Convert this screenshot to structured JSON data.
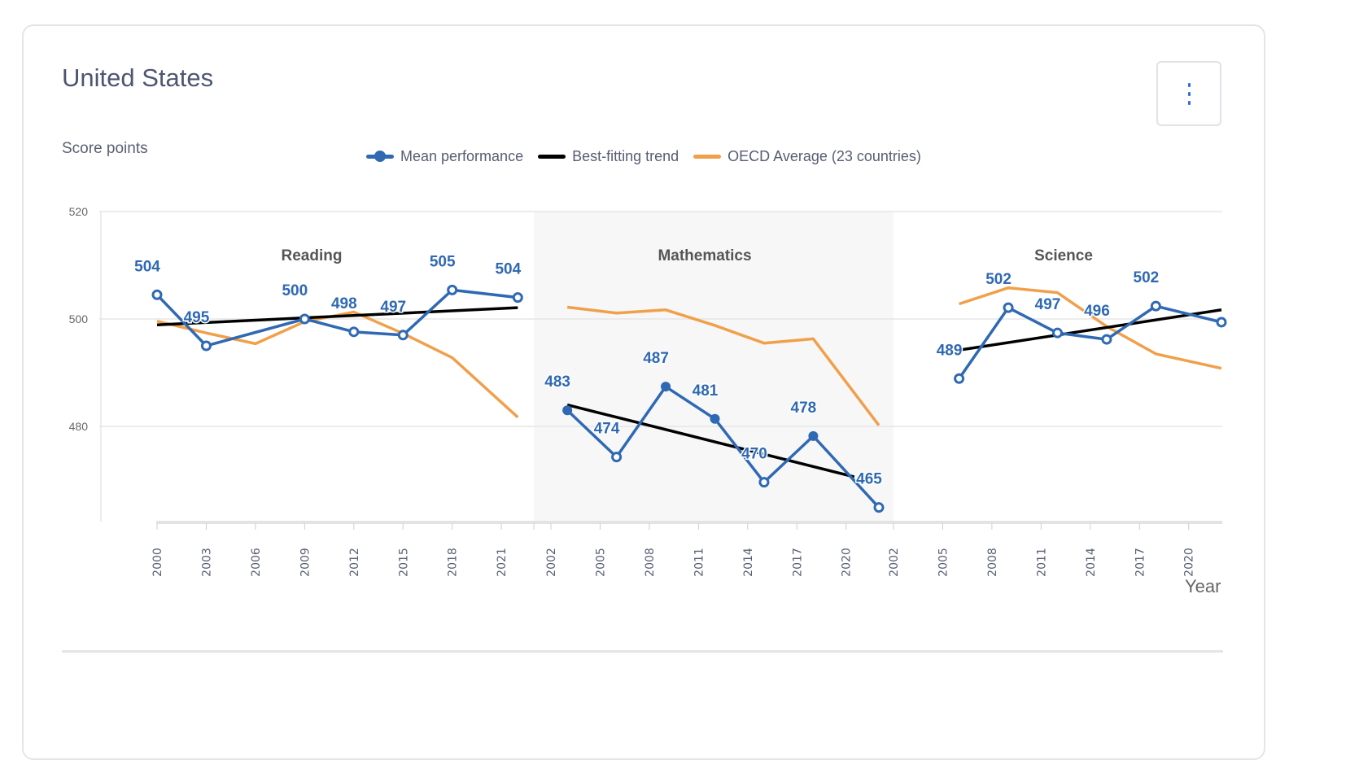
{
  "card": {
    "title": "United States",
    "menu_icon": "vertical-ellipsis-icon"
  },
  "chart_data": {
    "type": "line",
    "ylabel": "Score points",
    "xlabel": "Year",
    "ylim": [
      462,
      520
    ],
    "yticks": [
      480,
      500,
      520
    ],
    "grid": true,
    "legend_placement": "top-center",
    "legend": [
      {
        "name": "Mean performance",
        "color": "#2f69b3"
      },
      {
        "name": "Best-fitting trend",
        "color": "#000000"
      },
      {
        "name": "OECD Average (23 countries)",
        "color": "#f0a04b"
      }
    ],
    "panels": [
      {
        "title": "Reading",
        "tick_labels": [
          "2000",
          "2003",
          "2006",
          "2009",
          "2012",
          "2015",
          "2018",
          "2021"
        ],
        "tick_start": 2000,
        "shaded": false,
        "mean": [
          {
            "year": 2000,
            "value": 504.5,
            "label": "504",
            "marker": "open"
          },
          {
            "year": 2003,
            "value": 495,
            "label": "495",
            "marker": "open"
          },
          {
            "year": 2009,
            "value": 500,
            "label": "500",
            "marker": "open"
          },
          {
            "year": 2012,
            "value": 497.6,
            "label": "498",
            "marker": "open"
          },
          {
            "year": 2015,
            "value": 497,
            "label": "497",
            "marker": "open"
          },
          {
            "year": 2018,
            "value": 505.4,
            "label": "505",
            "marker": "open"
          },
          {
            "year": 2022,
            "value": 504,
            "label": "504",
            "marker": "open"
          }
        ],
        "trend": [
          {
            "year": 2000,
            "value": 498.9
          },
          {
            "year": 2022,
            "value": 502.1
          }
        ],
        "oecd": [
          {
            "year": 2000,
            "value": 499.6
          },
          {
            "year": 2003,
            "value": 497.4
          },
          {
            "year": 2006,
            "value": 495.4
          },
          {
            "year": 2009,
            "value": 499.5
          },
          {
            "year": 2012,
            "value": 501.3
          },
          {
            "year": 2015,
            "value": 497.3
          },
          {
            "year": 2018,
            "value": 492.8
          },
          {
            "year": 2022,
            "value": 481.7
          }
        ]
      },
      {
        "title": "Mathematics",
        "tick_labels": [
          "2002",
          "2005",
          "2008",
          "2011",
          "2014",
          "2017",
          "2020"
        ],
        "tick_start": 2002,
        "shaded": true,
        "mean": [
          {
            "year": 2003,
            "value": 483,
            "label": "483",
            "marker": "filled"
          },
          {
            "year": 2006,
            "value": 474.3,
            "label": "474",
            "marker": "open"
          },
          {
            "year": 2009,
            "value": 487.4,
            "label": "487",
            "marker": "filled"
          },
          {
            "year": 2012,
            "value": 481.4,
            "label": "481",
            "marker": "filled"
          },
          {
            "year": 2015,
            "value": 469.6,
            "label": "470",
            "marker": "open"
          },
          {
            "year": 2018,
            "value": 478.2,
            "label": "478",
            "marker": "filled"
          },
          {
            "year": 2022,
            "value": 464.9,
            "label": "465",
            "marker": "open"
          }
        ],
        "trend": [
          {
            "year": 2003,
            "value": 484
          },
          {
            "year": 2020.5,
            "value": 470.6
          }
        ],
        "oecd": [
          {
            "year": 2003,
            "value": 502.2
          },
          {
            "year": 2006,
            "value": 501.1
          },
          {
            "year": 2009,
            "value": 501.7
          },
          {
            "year": 2012,
            "value": 498.8
          },
          {
            "year": 2015,
            "value": 495.5
          },
          {
            "year": 2018,
            "value": 496.3
          },
          {
            "year": 2022,
            "value": 480.2
          }
        ]
      },
      {
        "title": "Science",
        "tick_labels": [
          "2002",
          "2005",
          "2008",
          "2011",
          "2014",
          "2017",
          "2020"
        ],
        "tick_start": 2002,
        "shaded": false,
        "mean": [
          {
            "year": 2006,
            "value": 488.9,
            "label": "489",
            "marker": "open"
          },
          {
            "year": 2009,
            "value": 502.1,
            "label": "502",
            "marker": "open"
          },
          {
            "year": 2012,
            "value": 497.4,
            "label": "497",
            "marker": "open"
          },
          {
            "year": 2015,
            "value": 496.2,
            "label": "496",
            "marker": "open"
          },
          {
            "year": 2018,
            "value": 502.4,
            "label": "502",
            "marker": "open"
          },
          {
            "year": 2022,
            "value": 499.4,
            "label": null,
            "marker": "open"
          }
        ],
        "trend": [
          {
            "year": 2006,
            "value": 494.2
          },
          {
            "year": 2022,
            "value": 501.7
          }
        ],
        "oecd": [
          {
            "year": 2006,
            "value": 502.8
          },
          {
            "year": 2009,
            "value": 505.8
          },
          {
            "year": 2012,
            "value": 504.9
          },
          {
            "year": 2015,
            "value": 498.6
          },
          {
            "year": 2018,
            "value": 493.5
          },
          {
            "year": 2022,
            "value": 490.8
          }
        ]
      }
    ]
  }
}
